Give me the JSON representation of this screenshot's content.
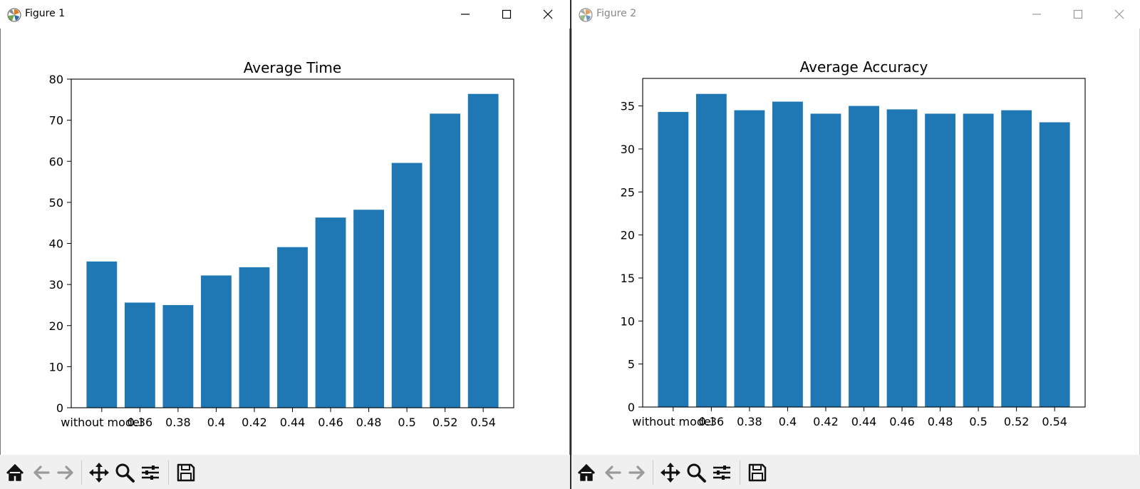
{
  "windows": [
    {
      "title": "Figure 1",
      "active": true
    },
    {
      "title": "Figure 2",
      "active": false
    }
  ],
  "colors": {
    "bar": "#1f77b4",
    "axis": "#000000",
    "toolbar_bg": "#f0f0f0"
  },
  "icons": [
    "matplotlib-logo-icon",
    "minimize-icon",
    "maximize-icon",
    "close-icon",
    "home-icon",
    "back-arrow-icon",
    "forward-arrow-icon",
    "pan-move-icon",
    "zoom-magnifier-icon",
    "configure-subplots-icon",
    "save-disk-icon"
  ],
  "chart_data": [
    {
      "type": "bar",
      "title": "Average Time",
      "xlabel": "",
      "ylabel": "",
      "categories": [
        "without model",
        "0.36",
        "0.38",
        "0.4",
        "0.42",
        "0.44",
        "0.46",
        "0.48",
        "0.5",
        "0.52",
        "0.54"
      ],
      "values": [
        35.6,
        25.6,
        25.0,
        32.2,
        34.2,
        39.1,
        46.3,
        48.2,
        59.6,
        71.6,
        76.4
      ],
      "ylim": [
        0,
        80
      ],
      "yticks": [
        0,
        10,
        20,
        30,
        40,
        50,
        60,
        70,
        80
      ],
      "grid": false,
      "legend": "none"
    },
    {
      "type": "bar",
      "title": "Average Accuracy",
      "xlabel": "",
      "ylabel": "",
      "categories": [
        "without model",
        "0.36",
        "0.38",
        "0.4",
        "0.42",
        "0.44",
        "0.46",
        "0.48",
        "0.5",
        "0.52",
        "0.54"
      ],
      "values": [
        34.3,
        36.4,
        34.5,
        35.5,
        34.1,
        35.0,
        34.6,
        34.1,
        34.1,
        34.5,
        33.1
      ],
      "ylim": [
        0,
        38.2
      ],
      "yticks": [
        0,
        5,
        10,
        15,
        20,
        25,
        30,
        35
      ],
      "grid": false,
      "legend": "none"
    }
  ]
}
